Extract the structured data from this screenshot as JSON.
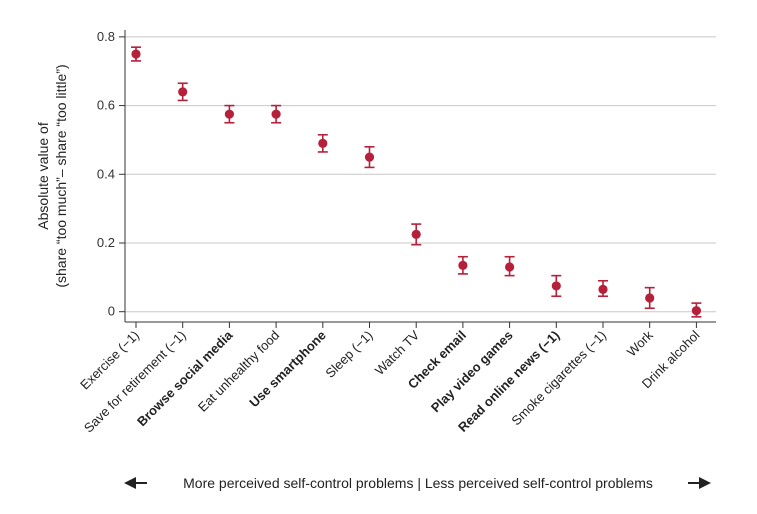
{
  "chart_data": {
    "type": "scatter",
    "categories": [
      "Exercise (−1)",
      "Save for retirement (−1)",
      "Browse social media",
      "Eat unhealthy food",
      "Use smartphone",
      "Sleep (−1)",
      "Watch TV",
      "Check email",
      "Play video games",
      "Read online news (−1)",
      "Smoke cigarettes (−1)",
      "Work",
      "Drink alcohol"
    ],
    "bold_categories": [
      "Browse social media",
      "Use smartphone",
      "Check email",
      "Play video games",
      "Read online news (−1)"
    ],
    "values": [
      0.75,
      0.64,
      0.575,
      0.575,
      0.49,
      0.45,
      0.225,
      0.135,
      0.13,
      0.075,
      0.065,
      0.04,
      0.003
    ],
    "ci_low": [
      0.73,
      0.615,
      0.55,
      0.55,
      0.465,
      0.42,
      0.195,
      0.11,
      0.105,
      0.045,
      0.045,
      0.01,
      -0.015
    ],
    "ci_high": [
      0.77,
      0.665,
      0.6,
      0.6,
      0.515,
      0.48,
      0.255,
      0.16,
      0.16,
      0.105,
      0.09,
      0.07,
      0.025
    ],
    "ylabel_line1": "Absolute value of",
    "ylabel_line2": "(share “too much”– share “too little”)",
    "ylim": [
      -0.03,
      0.82
    ],
    "yticks": [
      0,
      0.2,
      0.4,
      0.6,
      0.8
    ],
    "ytick_labels": [
      "0",
      "0.2",
      "0.4",
      "0.6",
      "0.8"
    ],
    "xlabel": "More perceived self-control problems | Less perceived self-control problems",
    "grid": true,
    "marker_color": "#b5203a"
  }
}
